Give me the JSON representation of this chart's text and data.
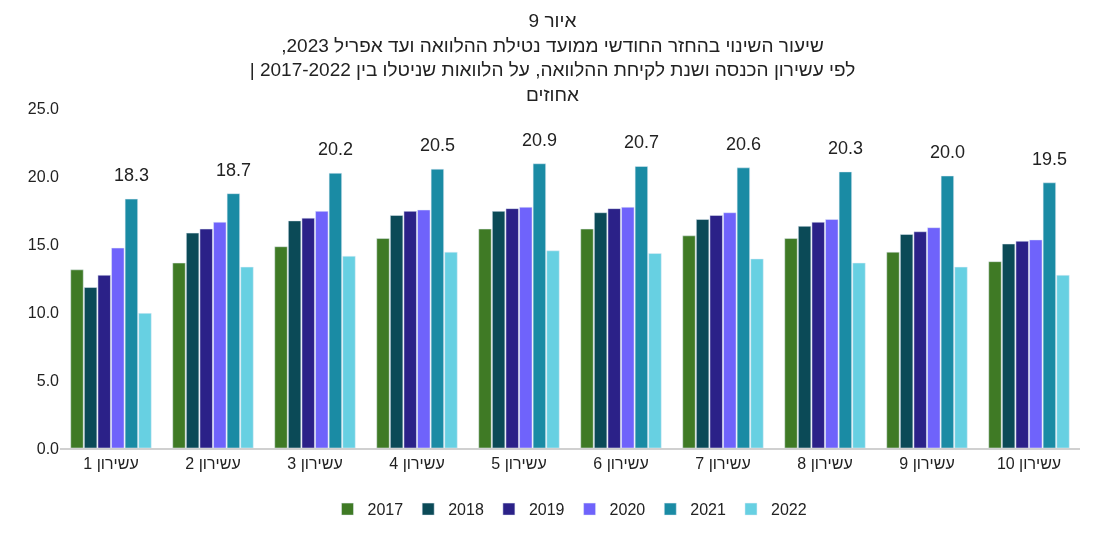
{
  "chart_data": {
    "type": "bar",
    "title": "איור 9\nשיעור השינוי בהחזר החודשי ממועד נטילת ההלוואה ועד אפריל 2023,\nלפי עשירון הכנסה ושנת לקיחת ההלוואה, על הלוואות שניטלו בין 2017-2022 |",
    "subtitle": "אחוזים",
    "categories": [
      "עשירון 1",
      "עשירון 2",
      "עשירון 3",
      "עשירון 4",
      "עשירון 5",
      "עשירון 6",
      "עשירון 7",
      "עשירון 8",
      "עשירון 9",
      "עשירון 10"
    ],
    "series": [
      {
        "name": "2017",
        "color": "#3f7a25",
        "values": [
          13.1,
          13.6,
          14.8,
          15.4,
          16.1,
          16.1,
          15.6,
          15.4,
          14.4,
          13.7
        ]
      },
      {
        "name": "2018",
        "color": "#0b4a57",
        "values": [
          11.8,
          15.8,
          16.7,
          17.1,
          17.4,
          17.3,
          16.8,
          16.3,
          15.7,
          15.0
        ]
      },
      {
        "name": "2019",
        "color": "#2b2188",
        "values": [
          12.7,
          16.1,
          16.9,
          17.4,
          17.6,
          17.6,
          17.1,
          16.6,
          15.9,
          15.2
        ]
      },
      {
        "name": "2020",
        "color": "#6f63fb",
        "values": [
          14.7,
          16.6,
          17.4,
          17.5,
          17.7,
          17.7,
          17.3,
          16.8,
          16.2,
          15.3
        ]
      },
      {
        "name": "2021",
        "color": "#1a8ba4",
        "values": [
          18.3,
          18.7,
          20.2,
          20.5,
          20.9,
          20.7,
          20.6,
          20.3,
          20.0,
          19.5
        ],
        "value_labels": [
          "18.3",
          "18.7",
          "20.2",
          "20.5",
          "20.9",
          "20.7",
          "20.6",
          "20.3",
          "20.0",
          "19.5"
        ]
      },
      {
        "name": "2022",
        "color": "#67d0e2",
        "values": [
          9.9,
          13.3,
          14.1,
          14.4,
          14.5,
          14.3,
          13.9,
          13.6,
          13.3,
          12.7
        ]
      }
    ],
    "ylim": [
      0,
      25
    ],
    "yticks": [
      {
        "value": 0,
        "label": "0.0"
      },
      {
        "value": 5,
        "label": "5.0"
      },
      {
        "value": 10,
        "label": "10.0"
      },
      {
        "value": 15,
        "label": "15.0"
      },
      {
        "value": 20,
        "label": "20.0"
      },
      {
        "value": 25,
        "label": "25.0"
      }
    ],
    "legend": "bottom"
  }
}
